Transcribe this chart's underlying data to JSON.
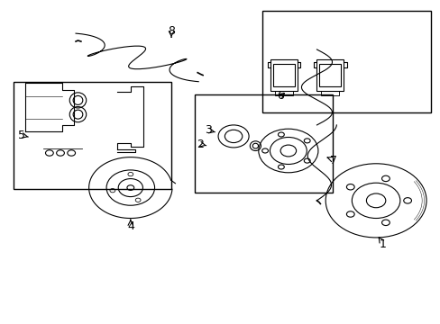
{
  "background_color": "#ffffff",
  "fig_width": 4.89,
  "fig_height": 3.6,
  "dpi": 100,
  "line_color": "#000000",
  "lw": 0.8
}
